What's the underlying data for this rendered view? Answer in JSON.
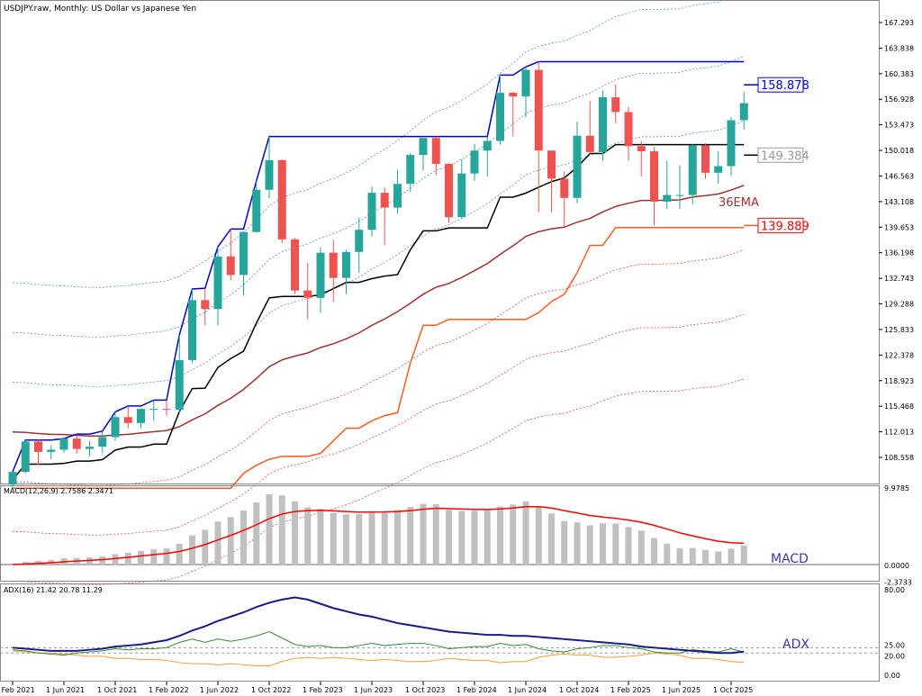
{
  "chart_data": {
    "type": "candlestick",
    "title": "USDJPY.raw, Monthly:  US Dollar vs Japanese Yen",
    "x": [
      "Feb 2021",
      "Mar 2021",
      "Apr 2021",
      "May 2021",
      "Jun 2021",
      "Jul 2021",
      "Aug 2021",
      "Sep 2021",
      "Oct 2021",
      "Nov 2021",
      "Dec 2021",
      "Jan 2022",
      "Feb 2022",
      "Mar 2022",
      "Apr 2022",
      "May 2022",
      "Jun 2022",
      "Jul 2022",
      "Aug 2022",
      "Sep 2022",
      "Oct 2022",
      "Nov 2022",
      "Dec 2022",
      "Jan 2023",
      "Feb 2023",
      "Mar 2023",
      "Apr 2023",
      "May 2023",
      "Jun 2023",
      "Jul 2023",
      "Aug 2023",
      "Sep 2023",
      "Oct 2023",
      "Nov 2023",
      "Dec 2023",
      "Jan 2024",
      "Feb 2024",
      "Mar 2024",
      "Apr 2024",
      "May 2024",
      "Jun 2024",
      "Jul 2024",
      "Aug 2024",
      "Sep 2024",
      "Oct 2024",
      "Nov 2024",
      "Dec 2024",
      "Jan 2025",
      "Feb 2025",
      "Mar 2025",
      "Apr 2025",
      "May 2025",
      "Jun 2025",
      "Jul 2025",
      "Aug 2025",
      "Sep 2025",
      "Oct 2025",
      "Nov 2025"
    ],
    "ohlc": [
      [
        104.9,
        106.6,
        104.4,
        106.6
      ],
      [
        106.6,
        110.9,
        106.4,
        110.7
      ],
      [
        110.7,
        110.9,
        107.5,
        109.3
      ],
      [
        109.3,
        110.2,
        108.3,
        109.6
      ],
      [
        109.6,
        111.1,
        109.2,
        111.1
      ],
      [
        111.1,
        111.7,
        109.1,
        109.7
      ],
      [
        109.7,
        110.8,
        108.7,
        110.0
      ],
      [
        110.0,
        112.1,
        109.1,
        111.3
      ],
      [
        111.3,
        114.7,
        110.8,
        114.0
      ],
      [
        114.0,
        115.5,
        112.5,
        113.2
      ],
      [
        113.2,
        115.2,
        112.5,
        115.1
      ],
      [
        115.1,
        116.3,
        113.5,
        115.1
      ],
      [
        115.1,
        116.3,
        114.2,
        115.0
      ],
      [
        115.0,
        125.1,
        114.6,
        121.7
      ],
      [
        121.7,
        131.3,
        121.3,
        129.8
      ],
      [
        129.8,
        131.4,
        126.4,
        128.6
      ],
      [
        128.6,
        137.0,
        126.4,
        135.7
      ],
      [
        135.7,
        139.4,
        132.5,
        133.2
      ],
      [
        133.2,
        139.1,
        130.4,
        139.0
      ],
      [
        139.0,
        145.9,
        138.9,
        144.7
      ],
      [
        144.7,
        151.9,
        143.5,
        148.7
      ],
      [
        148.7,
        148.8,
        137.5,
        138.0
      ],
      [
        138.0,
        138.2,
        130.6,
        131.1
      ],
      [
        131.1,
        134.8,
        127.2,
        130.1
      ],
      [
        130.1,
        136.9,
        128.1,
        136.2
      ],
      [
        136.2,
        137.9,
        129.6,
        132.8
      ],
      [
        132.8,
        136.6,
        130.6,
        136.3
      ],
      [
        136.3,
        140.9,
        133.5,
        139.3
      ],
      [
        139.3,
        145.1,
        138.4,
        144.3
      ],
      [
        144.3,
        145.0,
        137.2,
        142.3
      ],
      [
        142.3,
        147.4,
        141.5,
        145.5
      ],
      [
        145.5,
        149.7,
        144.4,
        149.4
      ],
      [
        149.4,
        151.7,
        147.3,
        151.7
      ],
      [
        151.7,
        151.9,
        146.7,
        148.2
      ],
      [
        148.2,
        148.3,
        140.2,
        141.0
      ],
      [
        141.0,
        148.8,
        140.8,
        146.9
      ],
      [
        146.9,
        150.9,
        145.9,
        150.0
      ],
      [
        150.0,
        151.9,
        146.5,
        151.3
      ],
      [
        151.3,
        160.2,
        150.8,
        157.8
      ],
      [
        157.8,
        157.9,
        151.9,
        157.3
      ],
      [
        157.3,
        161.3,
        154.5,
        160.9
      ],
      [
        160.9,
        162.0,
        141.7,
        150.0
      ],
      [
        150.0,
        150.0,
        141.7,
        146.2
      ],
      [
        146.2,
        147.2,
        139.6,
        143.6
      ],
      [
        143.6,
        153.9,
        142.9,
        152.0
      ],
      [
        152.0,
        156.7,
        149.4,
        149.8
      ],
      [
        149.8,
        158.1,
        148.6,
        157.2
      ],
      [
        157.2,
        158.9,
        153.7,
        155.2
      ],
      [
        155.2,
        155.9,
        148.6,
        150.6
      ],
      [
        150.6,
        151.3,
        146.5,
        149.9
      ],
      [
        149.9,
        150.5,
        139.9,
        143.1
      ],
      [
        143.1,
        148.6,
        142.1,
        144.0
      ],
      [
        144.0,
        148.0,
        142.1,
        144.0
      ],
      [
        144.0,
        150.9,
        142.7,
        150.7
      ],
      [
        150.7,
        151.0,
        146.2,
        147.0
      ],
      [
        147.0,
        149.9,
        145.5,
        147.9
      ],
      [
        147.9,
        154.5,
        146.6,
        154.1
      ],
      [
        154.1,
        157.9,
        152.8,
        156.4
      ]
    ],
    "ylim": [
      105.5,
      170.0
    ],
    "y_ticks": [
      "167.293",
      "163.838",
      "160.383",
      "156.928",
      "153.473",
      "150.018",
      "146.563",
      "143.108",
      "139.653",
      "136.198",
      "132.743",
      "129.288",
      "125.833",
      "122.378",
      "118.923",
      "115.468",
      "112.013",
      "108.558"
    ],
    "x_tick_labels": [
      "1 Feb 2021",
      "1 Jun 2021",
      "1 Oct 2021",
      "1 Feb 2022",
      "1 Jun 2022",
      "1 Oct 2022",
      "1 Feb 2023",
      "1 Jun 2023",
      "1 Oct 2023",
      "1 Feb 2024",
      "1 Jun 2024",
      "1 Oct 2024",
      "1 Feb 2025",
      "1 Jun 2025",
      "1 Oct 2025"
    ],
    "price_labels": {
      "upper": "158.878",
      "middle": "149.384",
      "lower": "139.889"
    },
    "ema_label": "36EMA",
    "macd": {
      "header": "MACD(12,26,9) 2.7586 2.3471",
      "label": "MACD",
      "ticks": [
        "9.9785",
        "0.0000",
        "-2.3733"
      ],
      "max": 9.9785,
      "min": -2.3733
    },
    "adx": {
      "header": "ADX(16) 21.42 20.78 11.29",
      "label": "ADX",
      "ticks": [
        "80.00",
        "25.00",
        "20.00",
        "0.00"
      ],
      "adx": [
        25,
        24,
        23,
        22,
        22,
        22,
        23,
        24,
        26,
        27,
        28,
        30,
        32,
        36,
        41,
        45,
        50,
        54,
        58,
        63,
        67,
        70,
        72,
        70,
        66,
        62,
        59,
        56,
        54,
        51,
        48,
        46,
        44,
        42,
        40,
        39,
        38,
        37,
        37,
        36,
        36,
        35,
        34,
        33,
        32,
        31,
        30,
        29,
        28,
        26,
        25,
        24,
        23,
        22,
        21,
        20,
        20,
        21.4
      ],
      "plus_di": [
        23,
        22,
        20,
        19,
        18,
        20,
        21,
        22,
        24,
        23,
        24,
        24,
        25,
        30,
        33,
        30,
        33,
        31,
        33,
        36,
        40,
        34,
        28,
        26,
        27,
        25,
        25,
        27,
        29,
        27,
        28,
        29,
        29,
        27,
        24,
        25,
        26,
        26,
        29,
        27,
        28,
        24,
        22,
        21,
        24,
        25,
        27,
        27,
        25,
        24,
        21,
        20,
        20,
        23,
        22,
        21,
        24,
        20.8
      ],
      "minus_di": [
        22,
        21,
        20,
        20,
        19,
        18,
        17,
        17,
        15,
        15,
        14,
        14,
        13,
        11,
        10,
        10,
        9,
        10,
        9,
        8,
        8,
        12,
        15,
        16,
        15,
        16,
        15,
        14,
        13,
        14,
        13,
        12,
        12,
        13,
        15,
        14,
        13,
        13,
        11,
        12,
        12,
        16,
        18,
        19,
        18,
        18,
        16,
        16,
        17,
        18,
        20,
        19,
        18,
        15,
        15,
        14,
        12,
        11.3
      ]
    }
  },
  "colors": {
    "bull": "#26a69a",
    "bear": "#ef5350",
    "upper": "#0000cc",
    "middle": "#000000",
    "lower": "#ff5a1f",
    "ema": "#a0322e",
    "macd_signal": "#ff0000",
    "macd_bar": "#c0c0c0",
    "adx": "#1a1a8c",
    "plus_di": "#2e8b2e",
    "minus_di": "#ff9a2e"
  }
}
